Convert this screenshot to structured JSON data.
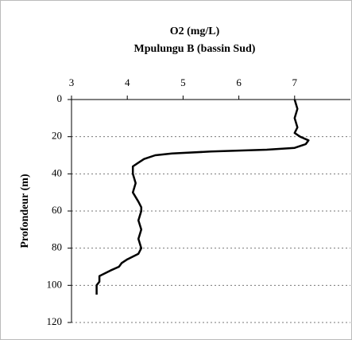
{
  "chart_data": {
    "type": "line",
    "title": "O2 (mg/L)",
    "subtitle": "Mpulungu B (bassin Sud)",
    "y_label": "Profondeur (m)",
    "xlim": [
      3,
      8
    ],
    "xticks": [
      3,
      4,
      5,
      6,
      7
    ],
    "ylim": [
      0,
      120
    ],
    "yticks": [
      0,
      20,
      40,
      60,
      80,
      100,
      120
    ],
    "y_inverted": true,
    "grid": true,
    "color": "#000000",
    "y": [
      0,
      5,
      10,
      15,
      18,
      20,
      22,
      24,
      26,
      27,
      28,
      29,
      30,
      32,
      34,
      36,
      40,
      45,
      50,
      55,
      58,
      60,
      65,
      70,
      75,
      80,
      83,
      86,
      88,
      90,
      92,
      95,
      98,
      100,
      103,
      105
    ],
    "values": [
      7.0,
      7.05,
      7.0,
      7.05,
      7.0,
      7.1,
      7.25,
      7.2,
      7.0,
      6.5,
      5.5,
      4.8,
      4.5,
      4.3,
      4.2,
      4.1,
      4.1,
      4.15,
      4.1,
      4.2,
      4.25,
      4.25,
      4.2,
      4.25,
      4.2,
      4.25,
      4.2,
      4.0,
      3.9,
      3.85,
      3.7,
      3.5,
      3.5,
      3.45,
      3.45,
      3.45
    ]
  }
}
